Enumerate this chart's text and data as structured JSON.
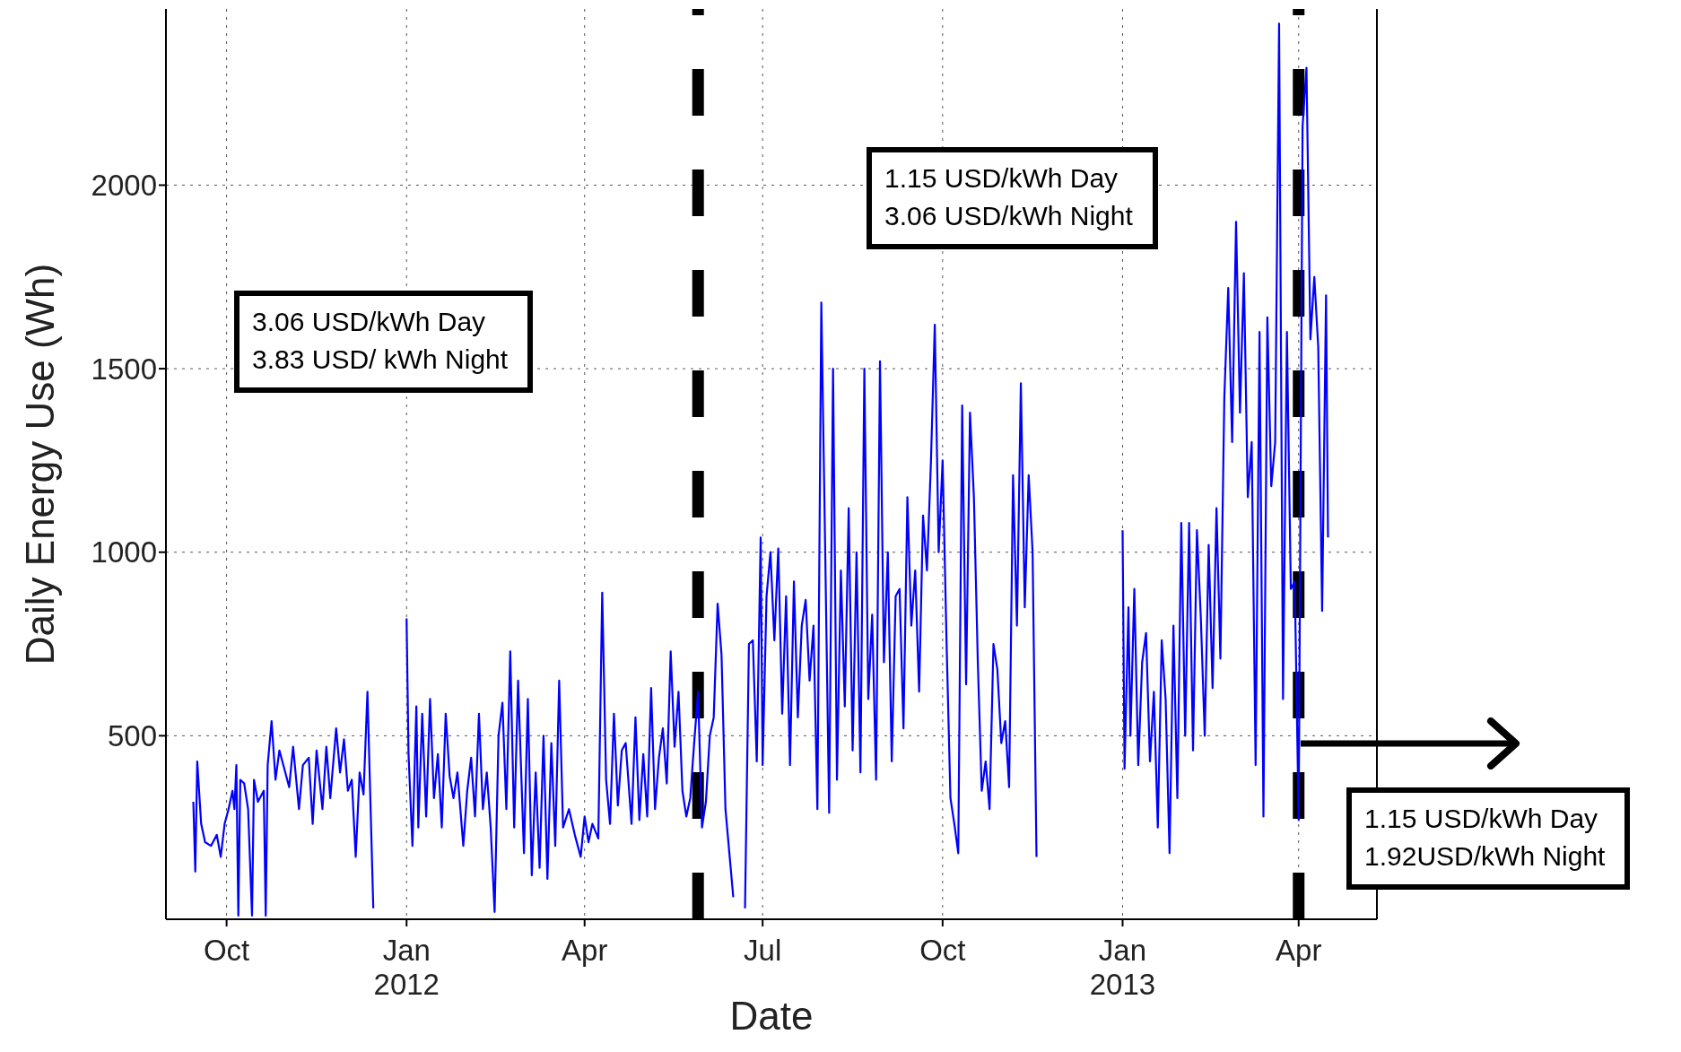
{
  "chart_data": {
    "type": "line",
    "xlabel": "Date",
    "ylabel": "Daily Energy Use (Wh)",
    "xlim": [
      "2011-08-31",
      "2013-05-11"
    ],
    "xticks": [
      {
        "value": "2011-10-01",
        "label": "Oct"
      },
      {
        "value": "2012-01-01",
        "label": "Jan\n2012"
      },
      {
        "value": "2012-04-01",
        "label": "Apr"
      },
      {
        "value": "2012-07-01",
        "label": "Jul"
      },
      {
        "value": "2012-10-01",
        "label": "Oct"
      },
      {
        "value": "2013-01-01",
        "label": "Jan\n2013"
      },
      {
        "value": "2013-04-01",
        "label": "Apr"
      }
    ],
    "ylim": [
      0,
      2480
    ],
    "yticks": [
      500,
      1000,
      1500,
      2000
    ],
    "grid": true,
    "marker": "none",
    "line_style": "solid",
    "series": [
      {
        "color": "#0000ff",
        "x": [
          "2011-09-14",
          "2011-09-15",
          "2011-09-16",
          "2011-09-18",
          "2011-09-20",
          "2011-09-23",
          "2011-09-26",
          "2011-09-28",
          "2011-09-30",
          "2011-10-02",
          "2011-10-04",
          "2011-10-05",
          "2011-10-06",
          "2011-10-07",
          "2011-10-08",
          "2011-10-10",
          "2011-10-12",
          "2011-10-14",
          "2011-10-15",
          "2011-10-17",
          "2011-10-20",
          "2011-10-21",
          "2011-10-22",
          "2011-10-24",
          "2011-10-26",
          "2011-10-28",
          "2011-10-31",
          "2011-11-02",
          "2011-11-04",
          "2011-11-07",
          "2011-11-09",
          "2011-11-12",
          "2011-11-14",
          "2011-11-16",
          "2011-11-19",
          "2011-11-21",
          "2011-11-23",
          "2011-11-26",
          "2011-11-28",
          "2011-11-30",
          "2011-12-02",
          "2011-12-04",
          "2011-12-06",
          "2011-12-08",
          "2011-12-10",
          "2011-12-12",
          "2011-12-15",
          "2011-12-20",
          "2012-01-01",
          "2012-01-02",
          "2012-01-04",
          "2012-01-06",
          "2012-01-07",
          "2012-01-09",
          "2012-01-11",
          "2012-01-13",
          "2012-01-15",
          "2012-01-17",
          "2012-01-19",
          "2012-01-21",
          "2012-01-23",
          "2012-01-25",
          "2012-01-27",
          "2012-01-30",
          "2012-02-01",
          "2012-02-03",
          "2012-02-05",
          "2012-02-07",
          "2012-02-09",
          "2012-02-11",
          "2012-02-13",
          "2012-02-15",
          "2012-02-17",
          "2012-02-19",
          "2012-02-21",
          "2012-02-23",
          "2012-02-25",
          "2012-02-27",
          "2012-03-01",
          "2012-03-03",
          "2012-03-05",
          "2012-03-07",
          "2012-03-09",
          "2012-03-11",
          "2012-03-13",
          "2012-03-15",
          "2012-03-17",
          "2012-03-19",
          "2012-03-21",
          "2012-03-24",
          "2012-03-27",
          "2012-03-30",
          "2012-04-01",
          "2012-04-03",
          "2012-04-05",
          "2012-04-08",
          "2012-04-10",
          "2012-04-12",
          "2012-04-14",
          "2012-04-16",
          "2012-04-18",
          "2012-04-20",
          "2012-04-22",
          "2012-04-25",
          "2012-04-27",
          "2012-04-29",
          "2012-05-01",
          "2012-05-03",
          "2012-05-05",
          "2012-05-07",
          "2012-05-09",
          "2012-05-11",
          "2012-05-13",
          "2012-05-15",
          "2012-05-17",
          "2012-05-19",
          "2012-05-21",
          "2012-05-23",
          "2012-05-25",
          "2012-05-27",
          "2012-05-29",
          "2012-05-31",
          "2012-06-02",
          "2012-06-04",
          "2012-06-06",
          "2012-06-08",
          "2012-06-10",
          "2012-06-12",
          "2012-06-16",
          "2012-06-18",
          "2012-06-22",
          "2012-06-24",
          "2012-06-26",
          "2012-06-28",
          "2012-06-30",
          "2012-07-01",
          "2012-07-03",
          "2012-07-05",
          "2012-07-07",
          "2012-07-09",
          "2012-07-11",
          "2012-07-13",
          "2012-07-15",
          "2012-07-17",
          "2012-07-19",
          "2012-07-21",
          "2012-07-23",
          "2012-07-25",
          "2012-07-27",
          "2012-07-29",
          "2012-07-31",
          "2012-08-02",
          "2012-08-04",
          "2012-08-06",
          "2012-08-08",
          "2012-08-10",
          "2012-08-12",
          "2012-08-14",
          "2012-08-16",
          "2012-08-18",
          "2012-08-20",
          "2012-08-22",
          "2012-08-24",
          "2012-08-26",
          "2012-08-28",
          "2012-08-30",
          "2012-09-01",
          "2012-09-03",
          "2012-09-05",
          "2012-09-07",
          "2012-09-09",
          "2012-09-11",
          "2012-09-13",
          "2012-09-15",
          "2012-09-17",
          "2012-09-19",
          "2012-09-21",
          "2012-09-23",
          "2012-09-25",
          "2012-09-27",
          "2012-09-29",
          "2012-10-01",
          "2012-10-03",
          "2012-10-05",
          "2012-10-07",
          "2012-10-09",
          "2012-10-11",
          "2012-10-13",
          "2012-10-15",
          "2012-10-17",
          "2012-10-19",
          "2012-10-21",
          "2012-10-23",
          "2012-10-25",
          "2012-10-27",
          "2012-10-29",
          "2012-10-31",
          "2012-11-02",
          "2012-11-04",
          "2012-11-06",
          "2012-11-08",
          "2012-11-10",
          "2012-11-12",
          "2012-11-14",
          "2012-11-16",
          "2012-11-18",
          "2012-11-25",
          "2013-01-01",
          "2013-01-02",
          "2013-01-04",
          "2013-01-05",
          "2013-01-07",
          "2013-01-09",
          "2013-01-11",
          "2013-01-13",
          "2013-01-15",
          "2013-01-17",
          "2013-01-19",
          "2013-01-21",
          "2013-01-23",
          "2013-01-25",
          "2013-01-27",
          "2013-01-29",
          "2013-01-31",
          "2013-02-02",
          "2013-02-04",
          "2013-02-06",
          "2013-02-08",
          "2013-02-10",
          "2013-02-12",
          "2013-02-14",
          "2013-02-16",
          "2013-02-18",
          "2013-02-20",
          "2013-02-22",
          "2013-02-24",
          "2013-02-26",
          "2013-02-28",
          "2013-03-02",
          "2013-03-04",
          "2013-03-06",
          "2013-03-08",
          "2013-03-10",
          "2013-03-12",
          "2013-03-14",
          "2013-03-16",
          "2013-03-18",
          "2013-03-20",
          "2013-03-22",
          "2013-03-24",
          "2013-03-26",
          "2013-03-28",
          "2013-03-30",
          "2013-04-01",
          "2013-04-03",
          "2013-04-05",
          "2013-04-07",
          "2013-04-09",
          "2013-04-11",
          "2013-04-13",
          "2013-04-15",
          "2013-04-16"
        ],
        "values": [
          320,
          130,
          430,
          260,
          210,
          200,
          230,
          170,
          260,
          300,
          350,
          300,
          420,
          10,
          380,
          370,
          300,
          10,
          380,
          320,
          350,
          10,
          420,
          540,
          380,
          460,
          400,
          360,
          470,
          300,
          420,
          440,
          260,
          460,
          300,
          470,
          330,
          520,
          400,
          490,
          350,
          380,
          170,
          400,
          340,
          620,
          30,
          null,
          820,
          450,
          200,
          580,
          250,
          560,
          280,
          600,
          330,
          450,
          250,
          560,
          390,
          330,
          400,
          200,
          350,
          440,
          280,
          560,
          300,
          400,
          250,
          20,
          500,
          590,
          300,
          730,
          250,
          650,
          180,
          600,
          120,
          400,
          140,
          500,
          110,
          480,
          200,
          650,
          250,
          300,
          230,
          170,
          280,
          210,
          260,
          220,
          890,
          380,
          260,
          560,
          310,
          460,
          480,
          260,
          550,
          270,
          450,
          280,
          630,
          300,
          440,
          520,
          370,
          730,
          470,
          620,
          350,
          280,
          330,
          480,
          620,
          250,
          320,
          500,
          550,
          860,
          720,
          300,
          60,
          null,
          30,
          750,
          760,
          430,
          1040,
          420,
          880,
          1000,
          760,
          1010,
          560,
          880,
          420,
          920,
          550,
          800,
          870,
          650,
          800,
          300,
          1680,
          1000,
          290,
          1500,
          380,
          950,
          580,
          1120,
          460,
          1000,
          400,
          1500,
          600,
          830,
          380,
          1520,
          700,
          1000,
          430,
          880,
          900,
          520,
          1150,
          800,
          950,
          620,
          1100,
          950,
          1240,
          1620,
          1000,
          1250,
          760,
          330,
          260,
          180,
          1400,
          640,
          1380,
          1150,
          700,
          350,
          430,
          300,
          750,
          680,
          480,
          540,
          360,
          1210,
          800,
          1460,
          850,
          1210,
          1000,
          170,
          null,
          1060,
          410,
          850,
          500,
          900,
          420,
          700,
          780,
          430,
          620,
          250,
          760,
          600,
          180,
          800,
          330,
          1080,
          500,
          1080,
          460,
          1060,
          820,
          500,
          1020,
          630,
          1120,
          710,
          1420,
          1720,
          1300,
          1900,
          1380,
          1760,
          1150,
          1300,
          420,
          1600,
          280,
          1640,
          1180,
          1300,
          2440,
          600,
          1600,
          900,
          920,
          270,
          2160,
          2320,
          1580,
          1750,
          1560,
          840,
          1700,
          1040
        ]
      }
    ],
    "ref_lines": [
      {
        "axis": "x",
        "value": "2012-05-29",
        "color": "#000000",
        "line_style": "dashed"
      },
      {
        "axis": "x",
        "value": "2013-04-01",
        "color": "#000000",
        "line_style": "dashed"
      }
    ],
    "annotations": [
      "3.06 USD/kWh Day",
      "3.83 USD/ kWh Night",
      "1.15 USD/kWh Day",
      "3.06 USD/kWh Night",
      "1.15 USD/kWh Day",
      "1.92USD/kWh Night"
    ]
  }
}
